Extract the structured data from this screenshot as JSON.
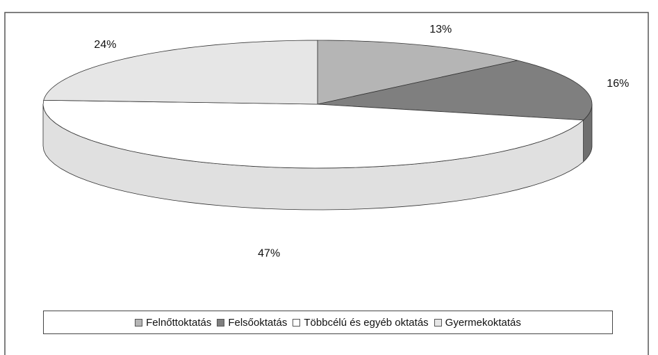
{
  "chart_data": {
    "type": "pie3d",
    "categories": [
      "Felnőttoktatás",
      "Felsőoktatás",
      "Többcélú és egyéb oktatás",
      "Gyermekoktatás"
    ],
    "values": [
      13,
      16,
      47,
      24
    ],
    "value_labels": [
      "13%",
      "16%",
      "47%",
      "24%"
    ],
    "colors": [
      "#b5b5b5",
      "#7f7f7f",
      "#ffffff",
      "#e6e6e6"
    ],
    "legend": "bottom"
  }
}
